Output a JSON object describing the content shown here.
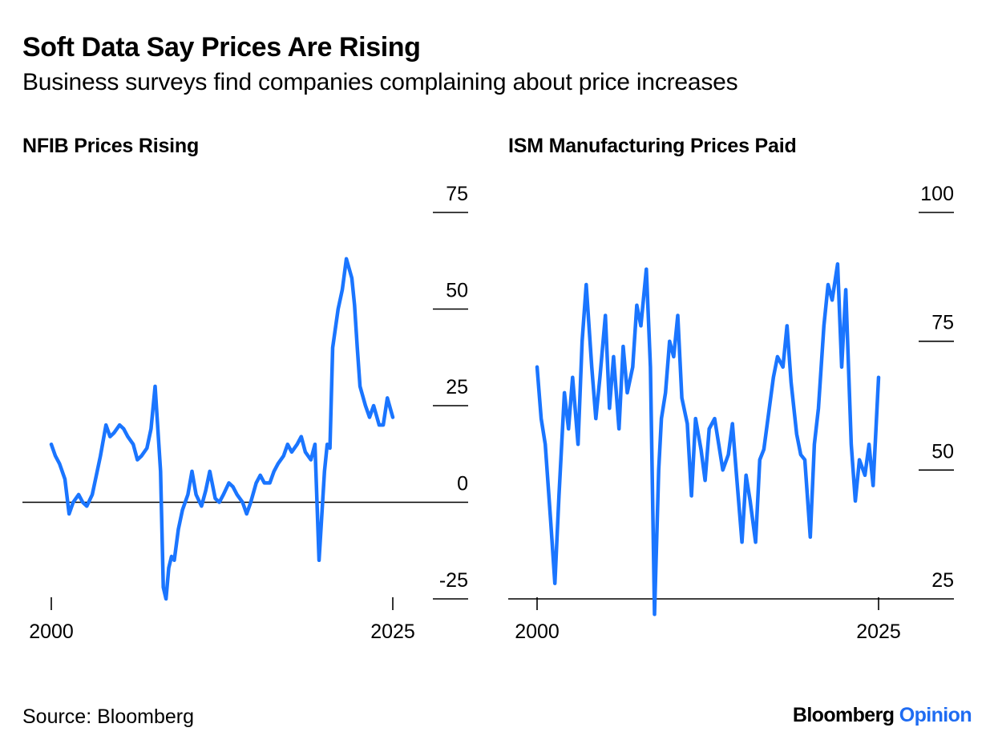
{
  "header": {
    "title": "Soft Data Say Prices Are Rising",
    "subtitle": "Business surveys find companies complaining about price increases"
  },
  "footer": {
    "source": "Source: Bloomberg",
    "brand_main": "Bloomberg",
    "brand_accent": "Opinion"
  },
  "colors": {
    "line": "#1a75ff",
    "accent": "#1f6cf2",
    "axis": "#000000"
  },
  "chart_data": [
    {
      "type": "line",
      "title": "NFIB Prices Rising",
      "xlabel": "",
      "ylabel": "",
      "xlim": [
        2000,
        2025
      ],
      "ylim": [
        -25,
        75
      ],
      "x_ticks": [
        2000,
        2025
      ],
      "x_tick_labels": [
        "2000",
        "2025"
      ],
      "y_ticks": [
        75,
        50,
        25,
        0,
        -25
      ],
      "y_tick_labels": [
        "75",
        "50",
        "25",
        "0",
        "-25"
      ],
      "grid": false,
      "legend": "none",
      "series": [
        {
          "x": [
            2000.0,
            2000.3,
            2000.6,
            2001.0,
            2001.3,
            2001.6,
            2002.0,
            2002.3,
            2002.6,
            2003.0,
            2003.3,
            2003.6,
            2004.0,
            2004.3,
            2004.6,
            2005.0,
            2005.3,
            2005.6,
            2006.0,
            2006.3,
            2006.6,
            2007.0,
            2007.3,
            2007.6,
            2008.0,
            2008.2,
            2008.4,
            2008.6,
            2008.8,
            2009.0,
            2009.3,
            2009.6,
            2010.0,
            2010.3,
            2010.6,
            2011.0,
            2011.3,
            2011.6,
            2012.0,
            2012.3,
            2012.6,
            2013.0,
            2013.3,
            2013.6,
            2014.0,
            2014.3,
            2014.6,
            2015.0,
            2015.3,
            2015.6,
            2016.0,
            2016.3,
            2016.6,
            2017.0,
            2017.3,
            2017.6,
            2018.0,
            2018.3,
            2018.6,
            2019.0,
            2019.3,
            2019.6,
            2020.0,
            2020.2,
            2020.4,
            2020.6,
            2021.0,
            2021.3,
            2021.6,
            2022.0,
            2022.2,
            2022.4,
            2022.6,
            2023.0,
            2023.3,
            2023.6,
            2024.0,
            2024.3,
            2024.6,
            2025.0
          ],
          "y": [
            15,
            12,
            10,
            6,
            -3,
            0,
            2,
            0,
            -1,
            2,
            7,
            12,
            20,
            17,
            18,
            20,
            19,
            17,
            15,
            11,
            12,
            14,
            19,
            30,
            8,
            -22,
            -25,
            -17,
            -14,
            -15,
            -7,
            -2,
            2,
            8,
            2,
            -1,
            3,
            8,
            1,
            0,
            2,
            5,
            4,
            2,
            0,
            -3,
            0,
            5,
            7,
            5,
            5,
            8,
            10,
            12,
            15,
            13,
            15,
            17,
            13,
            11,
            15,
            -15,
            8,
            15,
            14,
            40,
            50,
            55,
            63,
            58,
            51,
            40,
            30,
            25,
            22,
            25,
            20,
            20,
            27,
            22
          ]
        }
      ]
    },
    {
      "type": "line",
      "title": "ISM Manufacturing Prices Paid",
      "xlabel": "",
      "ylabel": "",
      "xlim": [
        2000,
        2025
      ],
      "ylim": [
        25,
        100
      ],
      "x_ticks": [
        2000,
        2025
      ],
      "x_tick_labels": [
        "2000",
        "2025"
      ],
      "y_ticks": [
        100,
        75,
        50,
        25
      ],
      "y_tick_labels": [
        "100",
        "75",
        "50",
        "25"
      ],
      "grid": false,
      "legend": "none",
      "series": [
        {
          "x": [
            2000.0,
            2000.3,
            2000.6,
            2001.0,
            2001.3,
            2001.6,
            2002.0,
            2002.3,
            2002.6,
            2003.0,
            2003.3,
            2003.6,
            2004.0,
            2004.3,
            2004.6,
            2005.0,
            2005.3,
            2005.6,
            2006.0,
            2006.3,
            2006.6,
            2007.0,
            2007.3,
            2007.6,
            2008.0,
            2008.3,
            2008.6,
            2008.9,
            2009.1,
            2009.4,
            2009.7,
            2010.0,
            2010.3,
            2010.6,
            2011.0,
            2011.3,
            2011.6,
            2012.0,
            2012.3,
            2012.6,
            2013.0,
            2013.3,
            2013.6,
            2014.0,
            2014.3,
            2014.6,
            2015.0,
            2015.3,
            2015.6,
            2016.0,
            2016.3,
            2016.6,
            2017.0,
            2017.3,
            2017.6,
            2018.0,
            2018.3,
            2018.6,
            2019.0,
            2019.3,
            2019.6,
            2020.0,
            2020.3,
            2020.6,
            2021.0,
            2021.3,
            2021.6,
            2022.0,
            2022.3,
            2022.6,
            2023.0,
            2023.3,
            2023.6,
            2024.0,
            2024.3,
            2024.6,
            2025.0
          ],
          "y": [
            70,
            60,
            55,
            40,
            28,
            45,
            65,
            58,
            68,
            55,
            75,
            86,
            70,
            60,
            68,
            80,
            62,
            72,
            58,
            74,
            65,
            70,
            82,
            78,
            89,
            70,
            22,
            50,
            60,
            65,
            75,
            72,
            80,
            64,
            59,
            45,
            60,
            54,
            48,
            58,
            60,
            55,
            50,
            53,
            59,
            49,
            36,
            49,
            44,
            36,
            52,
            54,
            62,
            68,
            72,
            70,
            78,
            67,
            57,
            53,
            52,
            37,
            55,
            62,
            78,
            86,
            83,
            90,
            70,
            85,
            55,
            44,
            52,
            49,
            55,
            47,
            68
          ]
        }
      ]
    }
  ]
}
